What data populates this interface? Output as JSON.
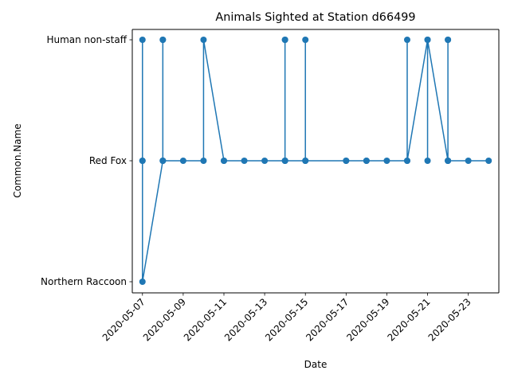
{
  "chart_data": {
    "type": "line",
    "title": "Animals Sighted at Station d66499",
    "xlabel": "Date",
    "ylabel": "Common.Name",
    "categories": [
      "Northern Raccoon",
      "Red Fox",
      "Human non-staff"
    ],
    "x_ticks": [
      "2020-05-07",
      "2020-05-09",
      "2020-05-11",
      "2020-05-13",
      "2020-05-15",
      "2020-05-17",
      "2020-05-19",
      "2020-05-21",
      "2020-05-23"
    ],
    "xlim": [
      "2020-05-06 12:00",
      "2020-05-24 12:00"
    ],
    "grid": false,
    "color": "#1f77b4",
    "series": [
      {
        "points": [
          [
            "2020-05-07 00:00",
            "Red Fox"
          ],
          [
            "2020-05-07 00:00",
            "Human non-staff"
          ],
          [
            "2020-05-07 00:00",
            "Red Fox"
          ],
          [
            "2020-05-07 00:00",
            "Northern Raccoon"
          ],
          [
            "2020-05-08 00:00",
            "Red Fox"
          ],
          [
            "2020-05-08 00:00",
            "Human non-staff"
          ],
          [
            "2020-05-08 00:00",
            "Red Fox"
          ],
          [
            "2020-05-08 00:00",
            "Human non-staff"
          ],
          [
            "2020-05-08 00:00",
            "Red Fox"
          ],
          [
            "2020-05-09 00:00",
            "Red Fox"
          ],
          [
            "2020-05-10 00:00",
            "Red Fox"
          ],
          [
            "2020-05-10 00:00",
            "Human non-staff"
          ],
          [
            "2020-05-11 00:00",
            "Red Fox"
          ],
          [
            "2020-05-11 00:00",
            "Red Fox"
          ],
          [
            "2020-05-12 00:00",
            "Red Fox"
          ],
          [
            "2020-05-13 00:00",
            "Red Fox"
          ],
          [
            "2020-05-14 00:00",
            "Red Fox"
          ],
          [
            "2020-05-14 00:00",
            "Human non-staff"
          ],
          [
            "2020-05-14 00:00",
            "Red Fox"
          ],
          [
            "2020-05-14 00:00",
            "Human non-staff"
          ],
          [
            "2020-05-14 00:00",
            "Red Fox"
          ],
          [
            "2020-05-15 00:00",
            "Red Fox"
          ],
          [
            "2020-05-15 00:00",
            "Human non-staff"
          ],
          [
            "2020-05-15 00:00",
            "Red Fox"
          ],
          [
            "2020-05-17 00:00",
            "Red Fox"
          ],
          [
            "2020-05-17 00:00",
            "Red Fox"
          ],
          [
            "2020-05-18 00:00",
            "Red Fox"
          ],
          [
            "2020-05-18 00:00",
            "Red Fox"
          ],
          [
            "2020-05-19 00:00",
            "Red Fox"
          ],
          [
            "2020-05-20 00:00",
            "Red Fox"
          ],
          [
            "2020-05-20 00:00",
            "Human non-staff"
          ],
          [
            "2020-05-20 00:00",
            "Red Fox"
          ],
          [
            "2020-05-21 00:00",
            "Human non-staff"
          ],
          [
            "2020-05-21 00:00",
            "Red Fox"
          ],
          [
            "2020-05-21 00:00",
            "Human non-staff"
          ],
          [
            "2020-05-22 00:00",
            "Red Fox"
          ],
          [
            "2020-05-22 00:00",
            "Human non-staff"
          ],
          [
            "2020-05-22 00:00",
            "Red Fox"
          ],
          [
            "2020-05-22 00:00",
            "Human non-staff"
          ],
          [
            "2020-05-22 00:00",
            "Red Fox"
          ],
          [
            "2020-05-23 00:00",
            "Red Fox"
          ],
          [
            "2020-05-24 00:00",
            "Red Fox"
          ]
        ]
      }
    ]
  }
}
